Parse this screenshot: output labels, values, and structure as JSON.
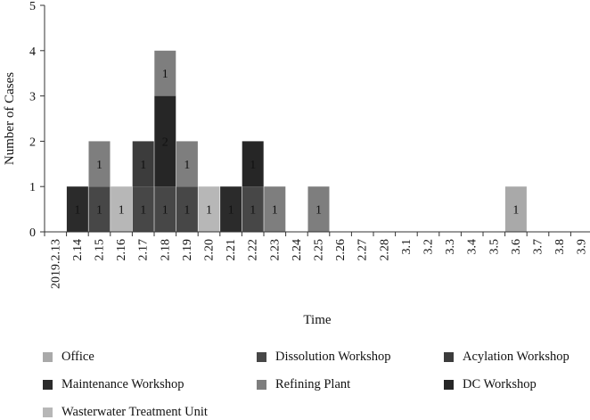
{
  "chart_data": {
    "type": "bar",
    "stacked": true,
    "title": "",
    "xlabel": "Time",
    "ylabel": "Number of Cases",
    "ylim": [
      0,
      5
    ],
    "yticks": [
      0,
      1,
      2,
      3,
      4,
      5
    ],
    "categories": [
      "2019.2.13",
      "2.14",
      "2.15",
      "2.16",
      "2.17",
      "2.18",
      "2.19",
      "2.20",
      "2.21",
      "2.22",
      "2.23",
      "2.24",
      "2.25",
      "2.26",
      "2.27",
      "2.28",
      "3.1",
      "3.2",
      "3.3",
      "3.4",
      "3.5",
      "3.6",
      "3.7",
      "3.8",
      "3.9"
    ],
    "legend_position": "bottom",
    "series": [
      {
        "name": "Office",
        "color": "#a9a9a9",
        "values": [
          0,
          0,
          0,
          0,
          0,
          0,
          0,
          0,
          0,
          0,
          0,
          0,
          0,
          0,
          0,
          0,
          0,
          0,
          0,
          0,
          0,
          1,
          0,
          0,
          0
        ]
      },
      {
        "name": "Dissolution Workshop",
        "color": "#474747",
        "values": [
          0,
          0,
          1,
          0,
          1,
          1,
          1,
          0,
          0,
          1,
          0,
          0,
          0,
          0,
          0,
          0,
          0,
          0,
          0,
          0,
          0,
          0,
          0,
          0,
          0
        ]
      },
      {
        "name": "Acylation Workshop",
        "color": "#3c3c3c",
        "values": [
          0,
          0,
          0,
          0,
          1,
          0,
          0,
          0,
          0,
          0,
          0,
          0,
          0,
          0,
          0,
          0,
          0,
          0,
          0,
          0,
          0,
          0,
          0,
          0,
          0
        ]
      },
      {
        "name": "Maintenance Workshop",
        "color": "#2b2b2b",
        "values": [
          0,
          1,
          0,
          0,
          0,
          0,
          0,
          0,
          1,
          0,
          0,
          0,
          0,
          0,
          0,
          0,
          0,
          0,
          0,
          0,
          0,
          0,
          0,
          0,
          0
        ]
      },
      {
        "name": "Refining Plant",
        "color": "#7e7e7e",
        "values": [
          0,
          0,
          1,
          0,
          0,
          1,
          1,
          0,
          0,
          0,
          1,
          0,
          1,
          0,
          0,
          0,
          0,
          0,
          0,
          0,
          0,
          0,
          0,
          0,
          0
        ]
      },
      {
        "name": "DC Workshop",
        "color": "#262626",
        "values": [
          0,
          0,
          0,
          0,
          0,
          2,
          0,
          0,
          0,
          1,
          0,
          0,
          0,
          0,
          0,
          0,
          0,
          0,
          0,
          0,
          0,
          0,
          0,
          0,
          0
        ]
      },
      {
        "name": "Wasterwater Treatment Unit",
        "color": "#b7b7b7",
        "values": [
          0,
          0,
          0,
          1,
          0,
          0,
          0,
          1,
          0,
          0,
          0,
          0,
          0,
          0,
          0,
          0,
          0,
          0,
          0,
          0,
          0,
          0,
          0,
          0,
          0
        ]
      }
    ],
    "segments": [
      {
        "category": "2.14",
        "series": "Maintenance Workshop",
        "value": 1,
        "label": "1"
      },
      {
        "category": "2.15",
        "series": "Dissolution Workshop",
        "value": 1,
        "label": "1"
      },
      {
        "category": "2.15",
        "series": "Refining Plant",
        "value": 1,
        "label": "1"
      },
      {
        "category": "2.16",
        "series": "Wasterwater Treatment Unit",
        "value": 1,
        "label": "1"
      },
      {
        "category": "2.17",
        "series": "Dissolution Workshop",
        "value": 1,
        "label": "1"
      },
      {
        "category": "2.17",
        "series": "Acylation Workshop",
        "value": 1,
        "label": "1"
      },
      {
        "category": "2.18",
        "series": "Dissolution Workshop",
        "value": 1,
        "label": "1"
      },
      {
        "category": "2.18",
        "series": "DC Workshop",
        "value": 2,
        "label": "2"
      },
      {
        "category": "2.18",
        "series": "Refining Plant",
        "value": 1,
        "label": "1"
      },
      {
        "category": "2.19",
        "series": "Dissolution Workshop",
        "value": 1,
        "label": "1"
      },
      {
        "category": "2.19",
        "series": "Refining Plant",
        "value": 1,
        "label": "1"
      },
      {
        "category": "2.20",
        "series": "Wasterwater Treatment Unit",
        "value": 1,
        "label": "1"
      },
      {
        "category": "2.21",
        "series": "Maintenance Workshop",
        "value": 1,
        "label": "1"
      },
      {
        "category": "2.22",
        "series": "Dissolution Workshop",
        "value": 1,
        "label": "1"
      },
      {
        "category": "2.22",
        "series": "DC Workshop",
        "value": 1,
        "label": "1"
      },
      {
        "category": "2.23",
        "series": "Refining Plant",
        "value": 1,
        "label": "1"
      },
      {
        "category": "2.25",
        "series": "Refining Plant",
        "value": 1,
        "label": "1"
      },
      {
        "category": "3.6",
        "series": "Office",
        "value": 1,
        "label": "1"
      }
    ]
  }
}
